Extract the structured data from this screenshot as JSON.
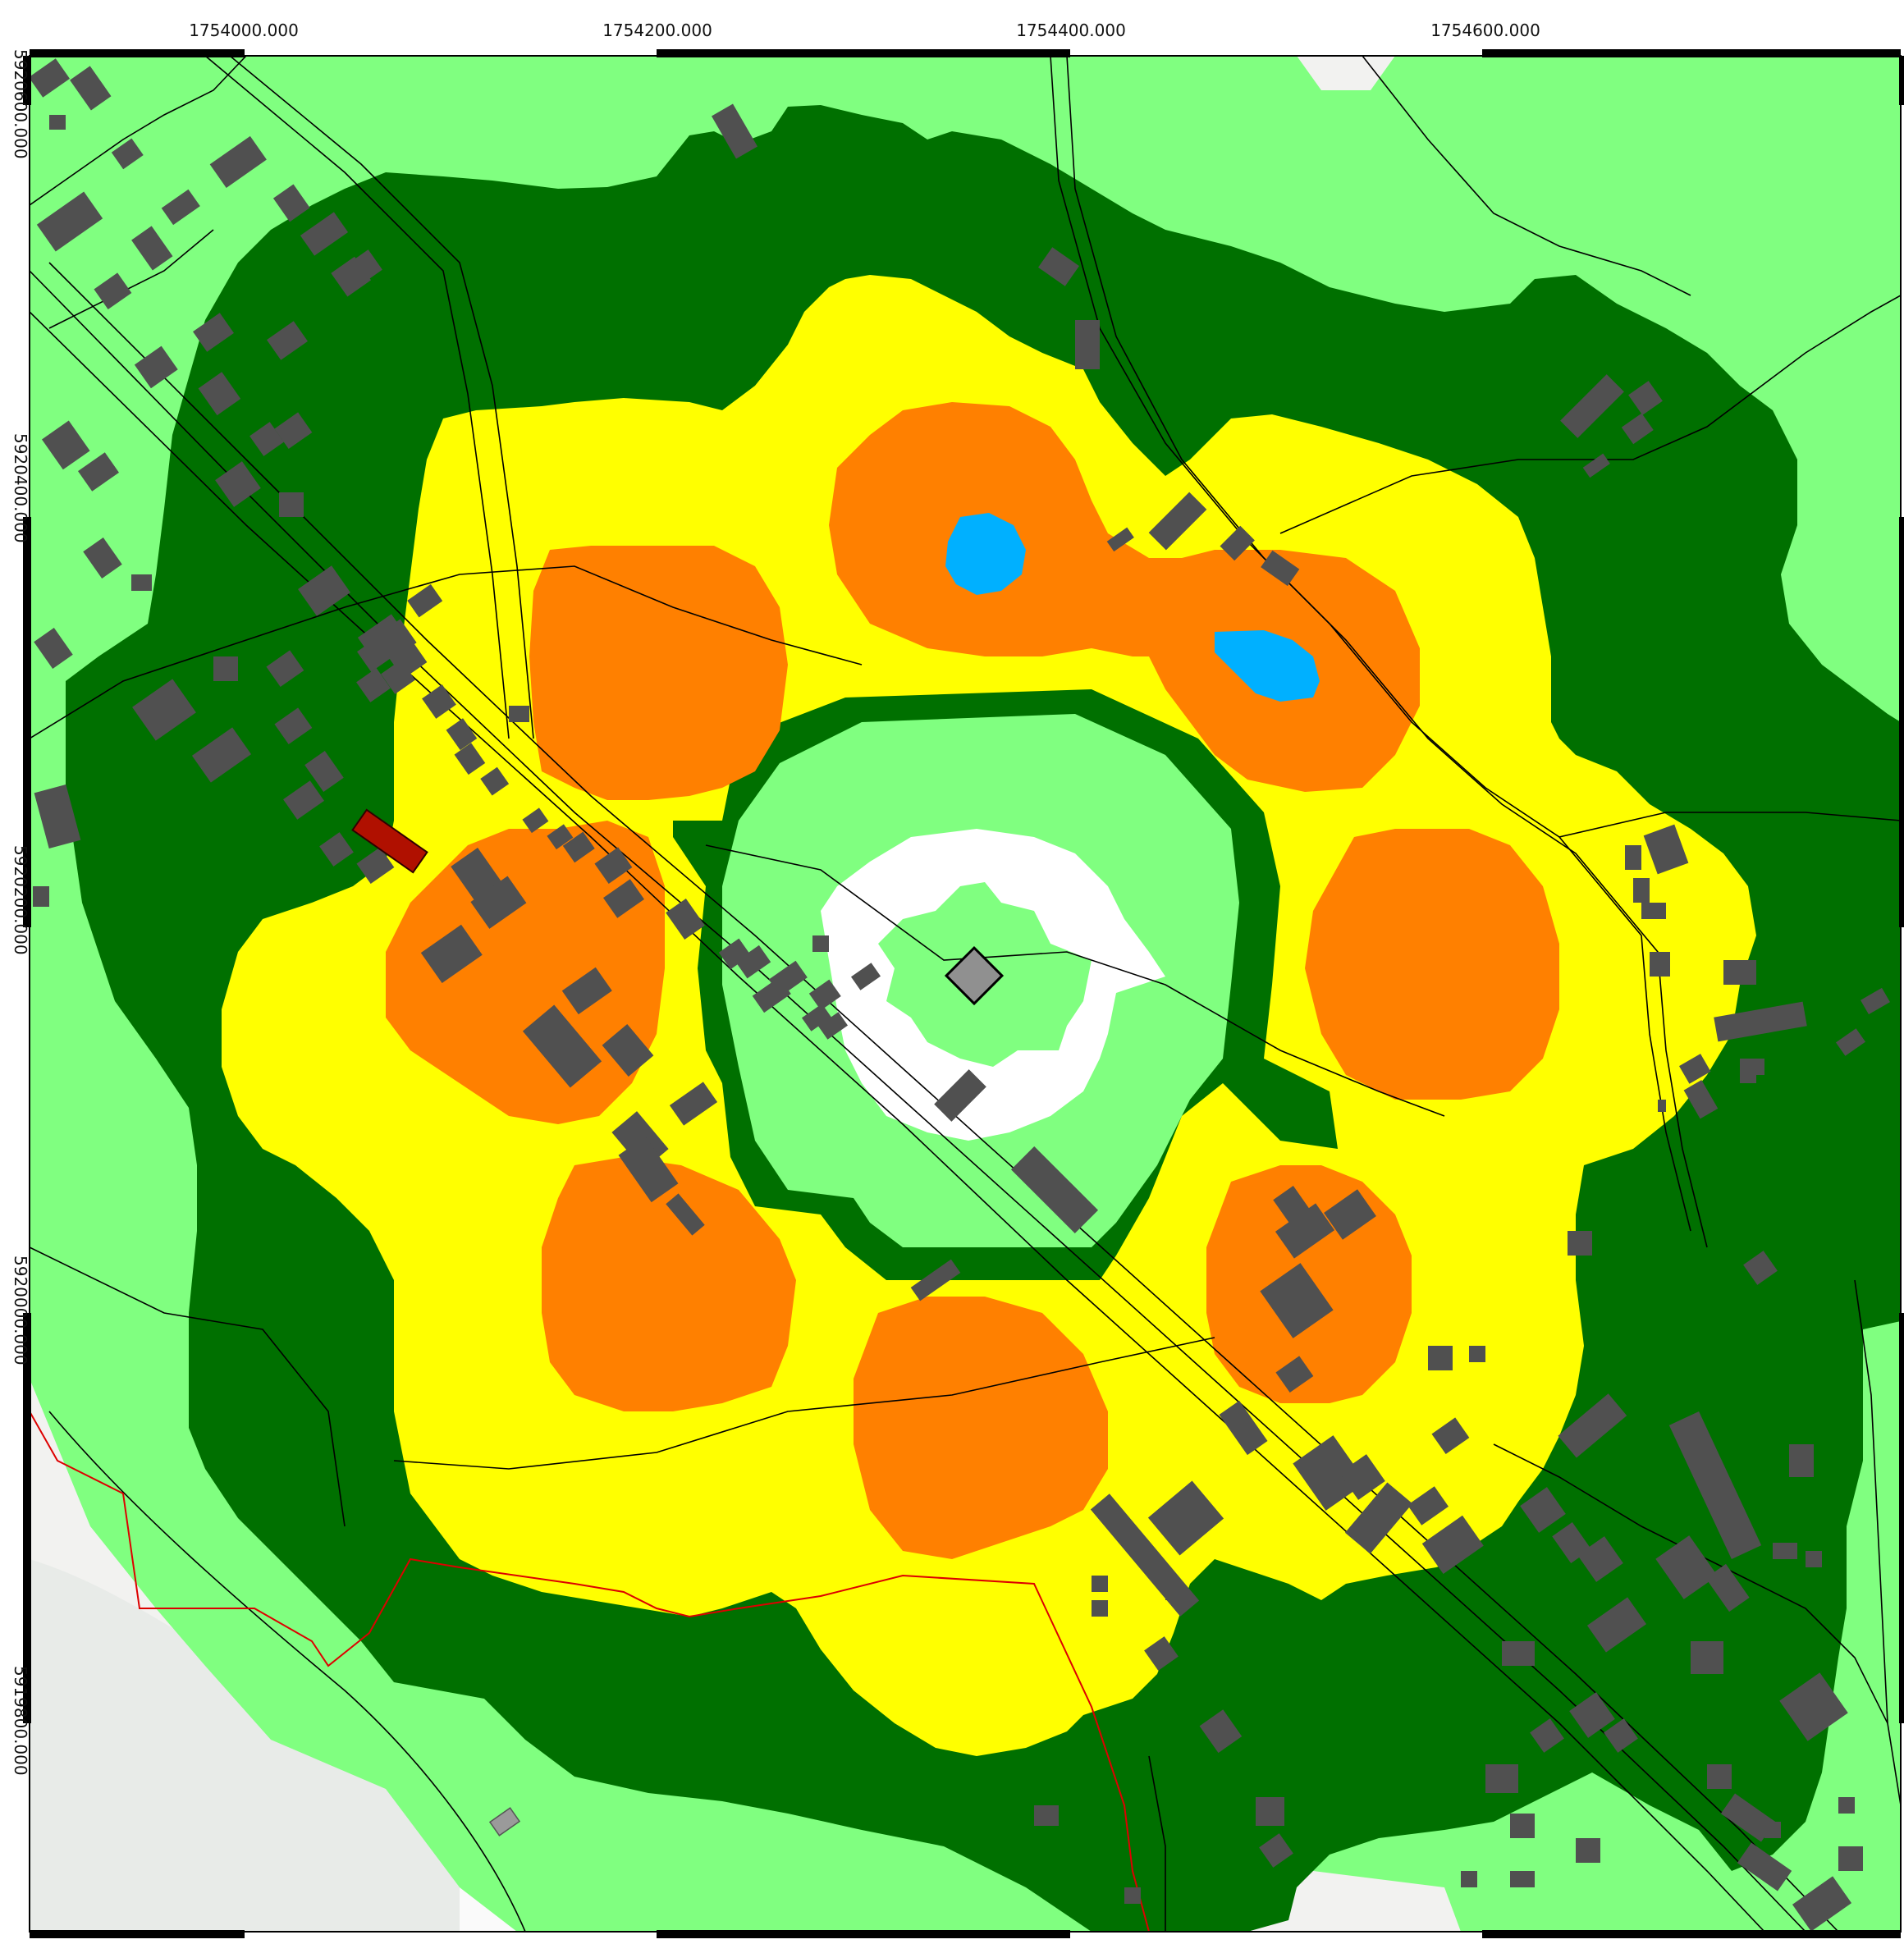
{
  "map": {
    "x_axis_labels": [
      "1754000.000",
      "1754200.000",
      "1754400.000",
      "1754600.000"
    ],
    "y_axis_labels": [
      "5920600.000",
      "5920400.000",
      "5920200.000",
      "5920000.000",
      "5919800.000"
    ],
    "colors": {
      "background": "#f2f2f0",
      "light_green": "#80ff80",
      "dark_green": "#007000",
      "yellow": "#ffff00",
      "orange": "#ff8000",
      "cyan": "#00b0ff",
      "white_zone": "#ffffff",
      "building": "#505050",
      "highlight_building": "#b01000",
      "source_marker": "#909090",
      "road_line": "#000000",
      "boundary_line": "#dd0000",
      "frame": "#000000"
    },
    "legend_elements": {
      "source_marker_icon": "diamond-icon"
    }
  }
}
